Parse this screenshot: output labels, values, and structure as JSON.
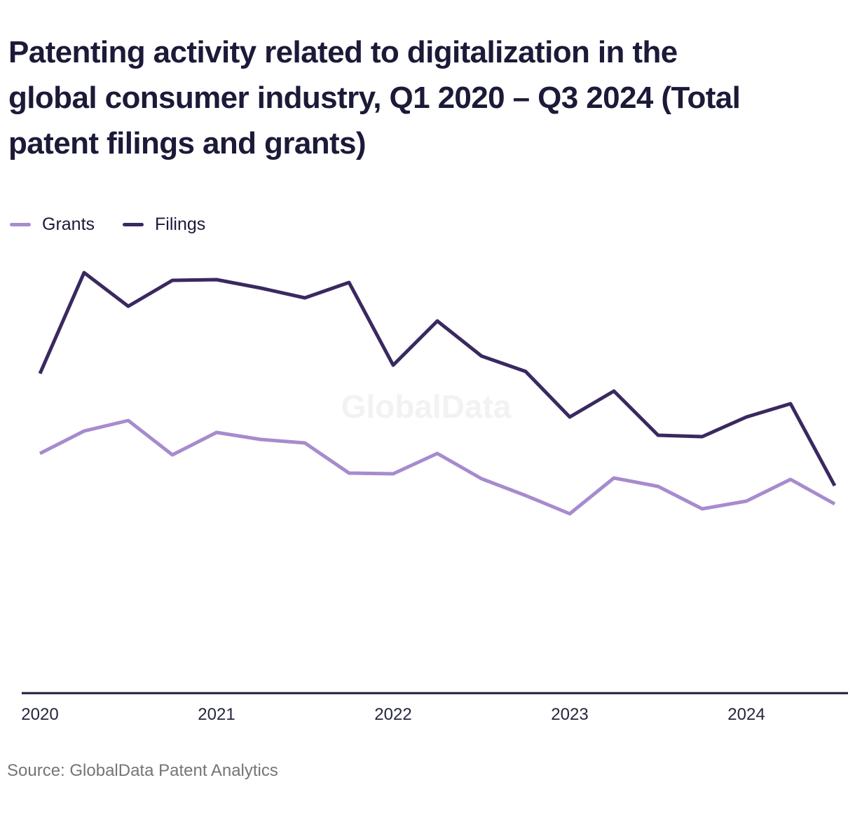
{
  "title": {
    "lines": [
      "Patenting activity related to digitalization in the",
      "global consumer industry, Q1 2020 – Q3 2024 (Total",
      "patent filings and grants)"
    ]
  },
  "legend": {
    "items": [
      {
        "label": "Grants",
        "color": "#a78bce"
      },
      {
        "label": "Filings",
        "color": "#3a2960"
      }
    ]
  },
  "watermark": "GlobalData",
  "source": "Source: GlobalData Patent Analytics",
  "colors": {
    "title_text": "#1b1a38",
    "axis_line": "#1b1a38",
    "tick_text": "#26263f",
    "source_text": "#757575",
    "watermark": "#f2f2f2",
    "grants_line": "#a78bce",
    "filings_line": "#3a2960"
  },
  "chart_data": {
    "type": "line",
    "title": "Patenting activity related to digitalization in the global consumer industry, Q1 2020 – Q3 2024 (Total patent filings and grants)",
    "x_tick_labels": [
      "2020",
      "2021",
      "2022",
      "2023",
      "2024"
    ],
    "categories": [
      "Q1 2020",
      "Q2 2020",
      "Q3 2020",
      "Q4 2020",
      "Q1 2021",
      "Q2 2021",
      "Q3 2021",
      "Q4 2021",
      "Q1 2022",
      "Q2 2022",
      "Q3 2022",
      "Q4 2022",
      "Q1 2023",
      "Q2 2023",
      "Q3 2023",
      "Q4 2023",
      "Q1 2024",
      "Q2 2024",
      "Q3 2024"
    ],
    "y_axis_visible": false,
    "y_units": "relative height, estimated from pixels (chart displays no y-axis labels)",
    "ylim": [
      0,
      650
    ],
    "grid": false,
    "legend_position": "top-left",
    "series": [
      {
        "name": "Filings",
        "color": "#3a2960",
        "values": [
          456,
          600,
          552,
          589,
          590,
          578,
          564,
          586,
          468,
          531,
          481,
          459,
          394,
          431,
          368,
          366,
          394,
          413,
          296
        ]
      },
      {
        "name": "Grants",
        "color": "#a78bce",
        "values": [
          342,
          374,
          389,
          340,
          372,
          362,
          357,
          314,
          313,
          342,
          306,
          282,
          256,
          307,
          295,
          263,
          274,
          305,
          270
        ]
      }
    ]
  }
}
